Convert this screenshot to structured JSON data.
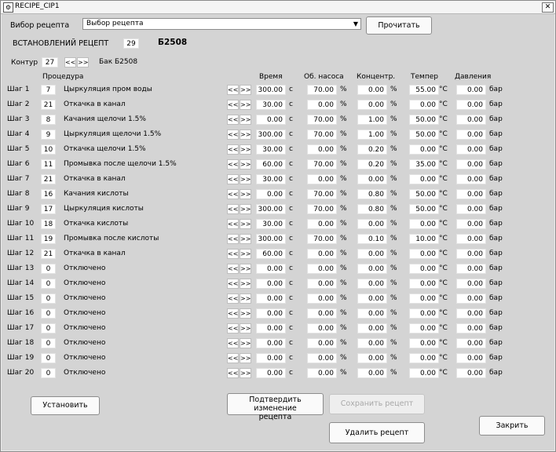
{
  "window": {
    "title": "RECIPE_CIP1",
    "close_symbol": "✕"
  },
  "top": {
    "select_label": "Вибор рецепта",
    "select_value": "Выбор рецепта",
    "read_button": "Прочитать",
    "installed_label": "ВСТАНОВЛЕНИЙ РЕЦЕПТ",
    "installed_value": "29",
    "recipe_name": "Б2508",
    "contour_label": "Контур",
    "contour_value": "27",
    "prev": "<<",
    "next": ">>",
    "tank_label": "Бак Б2508"
  },
  "headers": {
    "procedure": "Процедура",
    "time": "Время",
    "pump": "Об. насоса",
    "concentration": "Концентр.",
    "temperature": "Темпер",
    "pressure": "Давления"
  },
  "units": {
    "time": "с",
    "pump": "%",
    "conc": "%",
    "temp": "°C",
    "pressure": "бар"
  },
  "steps": [
    {
      "label": "Шаг 1",
      "code": "7",
      "name": "Цыркуляция пром воды",
      "time": "300.00",
      "pump": "70.00",
      "conc": "0.00",
      "temp": "55.00",
      "pressure": "0.00"
    },
    {
      "label": "Шаг 2",
      "code": "21",
      "name": "Откачка в канал",
      "time": "30.00",
      "pump": "0.00",
      "conc": "0.00",
      "temp": "0.00",
      "pressure": "0.00"
    },
    {
      "label": "Шаг 3",
      "code": "8",
      "name": "Качания щелочи 1.5%",
      "time": "0.00",
      "pump": "70.00",
      "conc": "1.00",
      "temp": "50.00",
      "pressure": "0.00"
    },
    {
      "label": "Шаг 4",
      "code": "9",
      "name": "Цыркуляция щелочи 1.5%",
      "time": "300.00",
      "pump": "70.00",
      "conc": "1.00",
      "temp": "50.00",
      "pressure": "0.00"
    },
    {
      "label": "Шаг 5",
      "code": "10",
      "name": "Откачка щелочи 1.5%",
      "time": "30.00",
      "pump": "0.00",
      "conc": "0.20",
      "temp": "0.00",
      "pressure": "0.00"
    },
    {
      "label": "Шаг 6",
      "code": "11",
      "name": "Промывка после щелочи 1.5%",
      "time": "60.00",
      "pump": "70.00",
      "conc": "0.20",
      "temp": "35.00",
      "pressure": "0.00"
    },
    {
      "label": "Шаг 7",
      "code": "21",
      "name": "Откачка в канал",
      "time": "30.00",
      "pump": "0.00",
      "conc": "0.00",
      "temp": "0.00",
      "pressure": "0.00"
    },
    {
      "label": "Шаг 8",
      "code": "16",
      "name": "Качания кислоты",
      "time": "0.00",
      "pump": "70.00",
      "conc": "0.80",
      "temp": "50.00",
      "pressure": "0.00"
    },
    {
      "label": "Шаг 9",
      "code": "17",
      "name": "Цыркуляция кислоты",
      "time": "300.00",
      "pump": "70.00",
      "conc": "0.80",
      "temp": "50.00",
      "pressure": "0.00"
    },
    {
      "label": "Шаг 10",
      "code": "18",
      "name": "Откачка кислоты",
      "time": "30.00",
      "pump": "0.00",
      "conc": "0.00",
      "temp": "0.00",
      "pressure": "0.00"
    },
    {
      "label": "Шаг 11",
      "code": "19",
      "name": "Промывка после кислоты",
      "time": "300.00",
      "pump": "70.00",
      "conc": "0.10",
      "temp": "10.00",
      "pressure": "0.00"
    },
    {
      "label": "Шаг 12",
      "code": "21",
      "name": "Откачка в канал",
      "time": "60.00",
      "pump": "0.00",
      "conc": "0.00",
      "temp": "0.00",
      "pressure": "0.00"
    },
    {
      "label": "Шаг 13",
      "code": "0",
      "name": "Отключено",
      "time": "0.00",
      "pump": "0.00",
      "conc": "0.00",
      "temp": "0.00",
      "pressure": "0.00"
    },
    {
      "label": "Шаг 14",
      "code": "0",
      "name": "Отключено",
      "time": "0.00",
      "pump": "0.00",
      "conc": "0.00",
      "temp": "0.00",
      "pressure": "0.00"
    },
    {
      "label": "Шаг 15",
      "code": "0",
      "name": "Отключено",
      "time": "0.00",
      "pump": "0.00",
      "conc": "0.00",
      "temp": "0.00",
      "pressure": "0.00"
    },
    {
      "label": "Шаг 16",
      "code": "0",
      "name": "Отключено",
      "time": "0.00",
      "pump": "0.00",
      "conc": "0.00",
      "temp": "0.00",
      "pressure": "0.00"
    },
    {
      "label": "Шаг 17",
      "code": "0",
      "name": "Отключено",
      "time": "0.00",
      "pump": "0.00",
      "conc": "0.00",
      "temp": "0.00",
      "pressure": "0.00"
    },
    {
      "label": "Шаг 18",
      "code": "0",
      "name": "Отключено",
      "time": "0.00",
      "pump": "0.00",
      "conc": "0.00",
      "temp": "0.00",
      "pressure": "0.00"
    },
    {
      "label": "Шаг 19",
      "code": "0",
      "name": "Отключено",
      "time": "0.00",
      "pump": "0.00",
      "conc": "0.00",
      "temp": "0.00",
      "pressure": "0.00"
    },
    {
      "label": "Шаг 20",
      "code": "0",
      "name": "Отключено",
      "time": "0.00",
      "pump": "0.00",
      "conc": "0.00",
      "temp": "0.00",
      "pressure": "0.00"
    }
  ],
  "buttons": {
    "install": "Установить",
    "confirm_line1": "Подтвердить изменение",
    "confirm_line2": "рецепта",
    "save": "Сохранить рецепт",
    "delete": "Удалить рецепт",
    "close": "Закрить"
  }
}
